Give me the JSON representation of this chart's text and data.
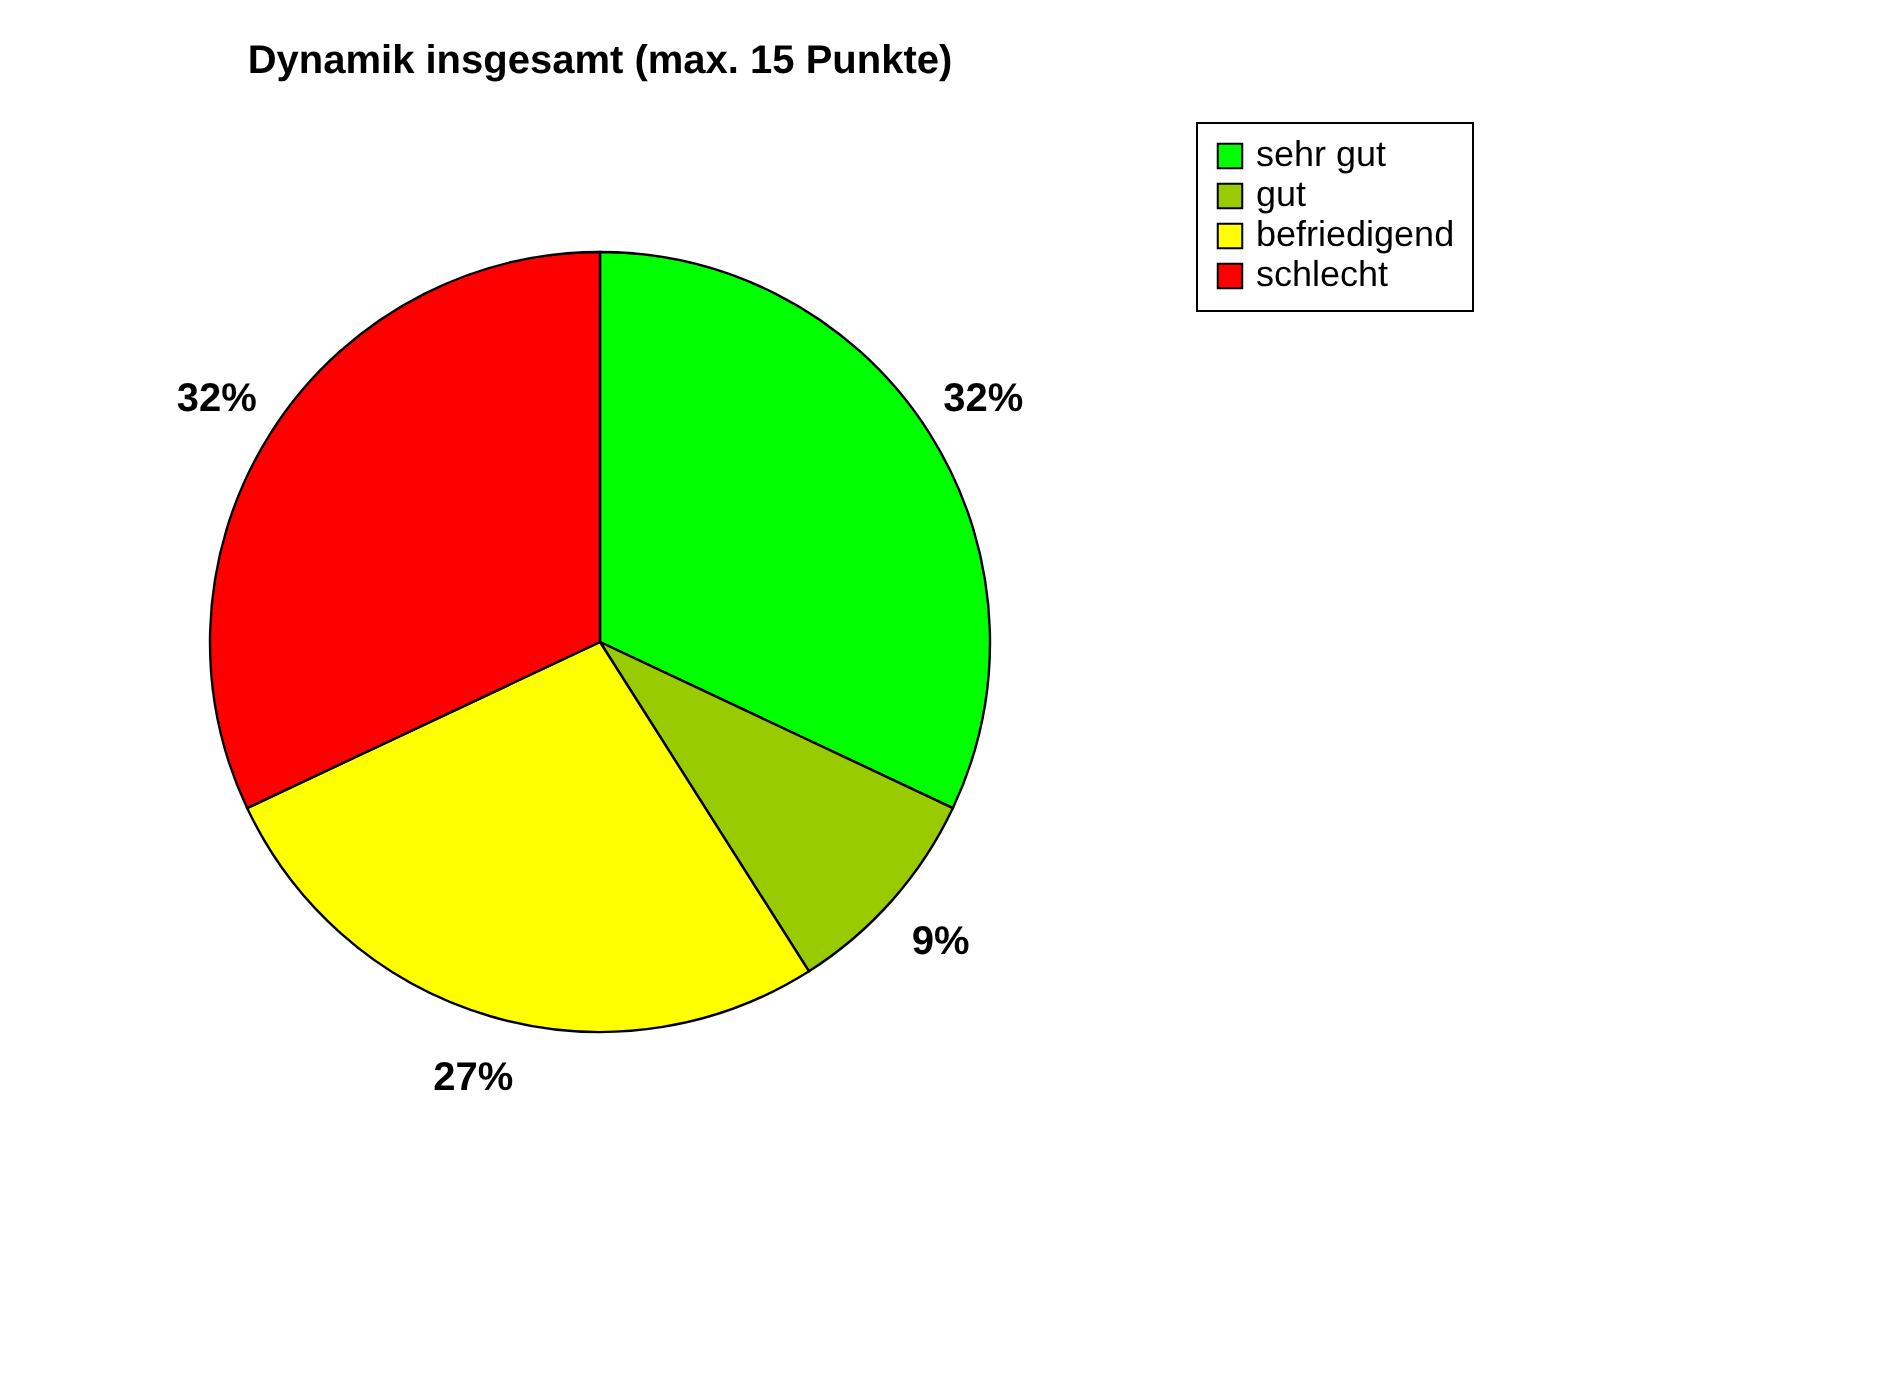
{
  "chart_data": {
    "type": "pie",
    "title": "Dynamik insgesamt (max. 15 Punkte)",
    "categories": [
      "sehr gut",
      "gut",
      "befriedigend",
      "schlecht"
    ],
    "values": [
      32,
      9,
      27,
      32
    ],
    "colors": [
      "#00ff00",
      "#99cc00",
      "#ffff00",
      "#ff0000"
    ],
    "value_labels": [
      "32%",
      "9%",
      "27%",
      "32%"
    ],
    "legend": "right"
  }
}
